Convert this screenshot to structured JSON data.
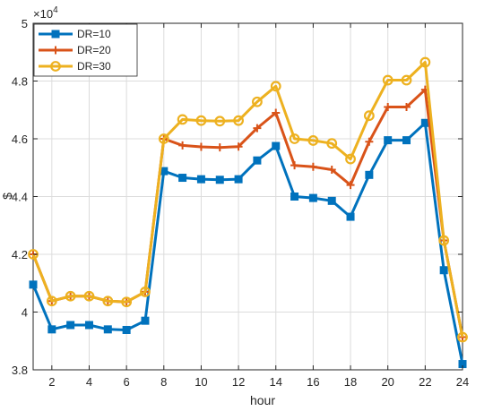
{
  "chart_data": {
    "type": "line",
    "xlabel": "hour",
    "ylabel": "$",
    "y_exponent_label": "×10",
    "y_exponent_power": "4",
    "xlim": [
      1,
      24
    ],
    "ylim": [
      3.8,
      5.0
    ],
    "x_ticks": [
      2,
      4,
      6,
      8,
      10,
      12,
      14,
      16,
      18,
      20,
      22,
      24
    ],
    "y_ticks": [
      3.8,
      4,
      4.2,
      4.4,
      4.6,
      4.8,
      5
    ],
    "y_tick_labels": [
      "3.8",
      "4",
      "4.2",
      "4.4",
      "4.6",
      "4.8",
      "5"
    ],
    "grid": true,
    "legend_position": "top-left",
    "x": [
      1,
      2,
      3,
      4,
      5,
      6,
      7,
      8,
      9,
      10,
      11,
      12,
      13,
      14,
      15,
      16,
      17,
      18,
      19,
      20,
      21,
      22,
      23,
      24
    ],
    "series": [
      {
        "name": "DR=10",
        "color": "#0072BD",
        "marker": "square",
        "values": [
          4.095,
          3.94,
          3.955,
          3.955,
          3.94,
          3.938,
          3.97,
          4.488,
          4.465,
          4.46,
          4.458,
          4.46,
          4.525,
          4.575,
          4.4,
          4.395,
          4.385,
          4.33,
          4.475,
          4.595,
          4.595,
          4.655,
          4.145,
          3.82
        ]
      },
      {
        "name": "DR=20",
        "color": "#D95319",
        "marker": "plus",
        "values": [
          4.2,
          4.038,
          4.055,
          4.055,
          4.038,
          4.035,
          4.07,
          4.6,
          4.577,
          4.572,
          4.57,
          4.573,
          4.637,
          4.69,
          4.508,
          4.503,
          4.493,
          4.44,
          4.59,
          4.71,
          4.71,
          4.77,
          4.248,
          3.913
        ]
      },
      {
        "name": "DR=30",
        "color": "#EDB120",
        "marker": "circle",
        "values": [
          4.2,
          4.038,
          4.055,
          4.055,
          4.038,
          4.035,
          4.07,
          4.6,
          4.667,
          4.663,
          4.661,
          4.663,
          4.728,
          4.782,
          4.6,
          4.594,
          4.584,
          4.53,
          4.68,
          4.803,
          4.803,
          4.865,
          4.248,
          3.913
        ]
      }
    ]
  }
}
